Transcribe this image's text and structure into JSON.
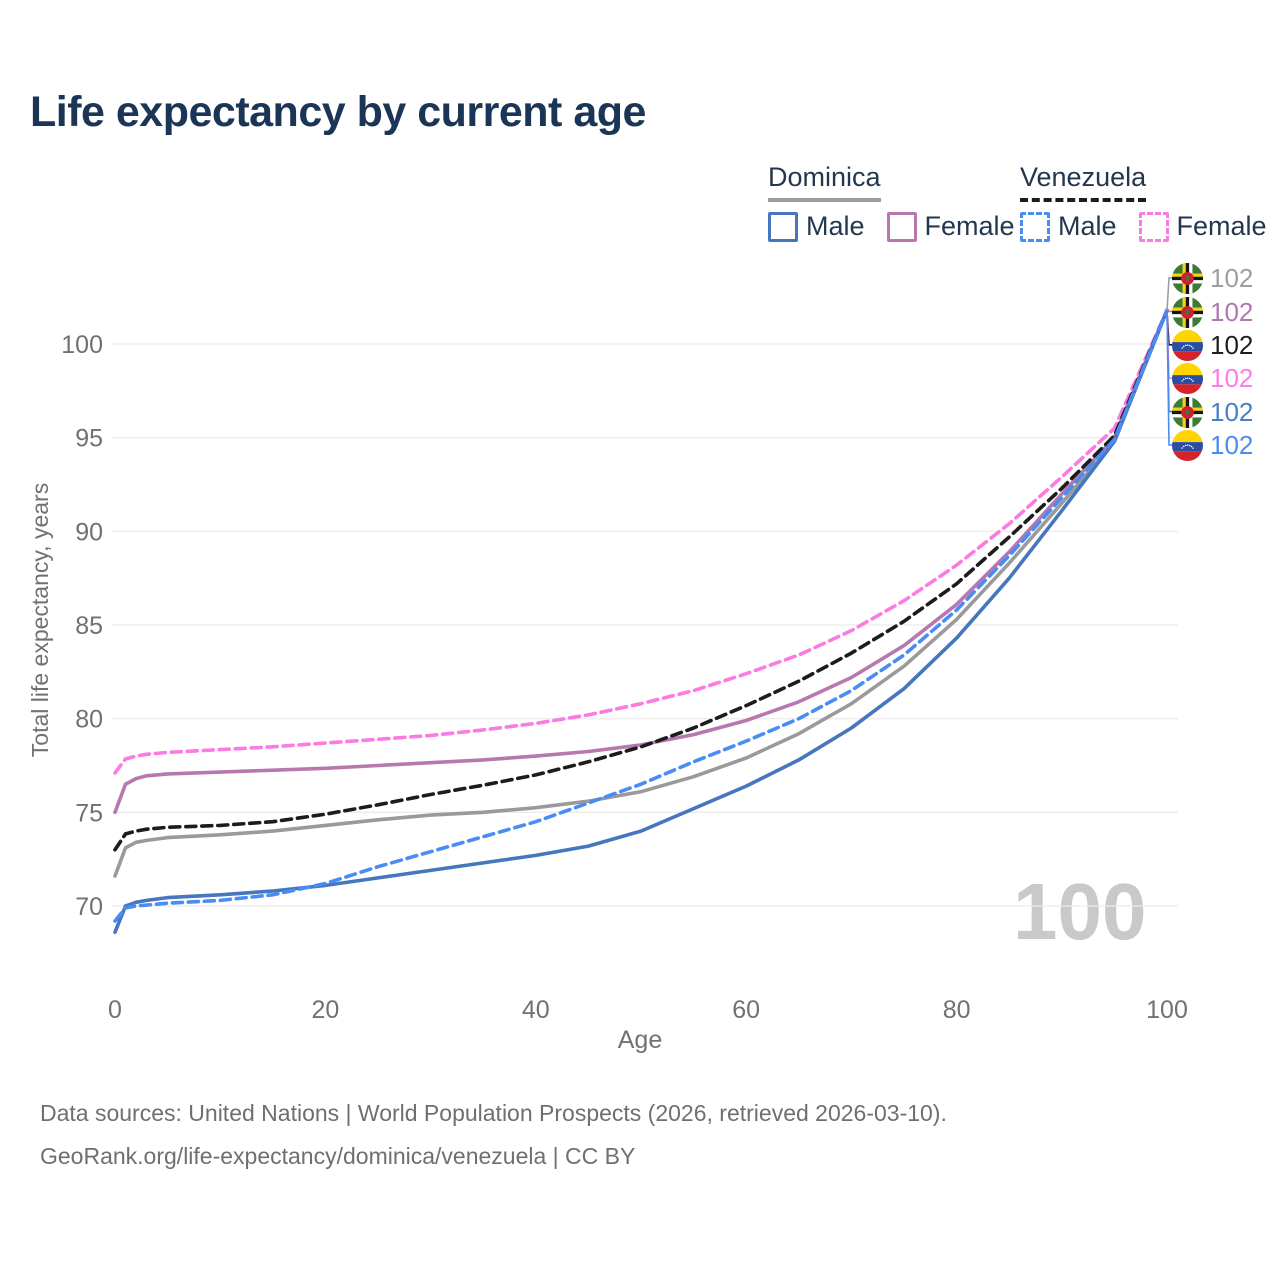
{
  "title": "Life expectancy by current age",
  "legend": {
    "dominica": {
      "label": "Dominica",
      "male": "Male",
      "female": "Female"
    },
    "venezuela": {
      "label": "Venezuela",
      "male": "Male",
      "female": "Female"
    }
  },
  "watermark": "100",
  "footer": {
    "line1": "Data sources: United Nations | World Population Prospects (2026, retrieved 2026-03-10).",
    "line2": "GeoRank.org/life-expectancy/dominica/venezuela | CC BY"
  },
  "chart_data": {
    "type": "line",
    "title": "Life expectancy by current age",
    "xlabel": "Age",
    "ylabel": "Total life expectancy, years",
    "xlim": [
      0,
      100
    ],
    "ylim": [
      68,
      103
    ],
    "xticks": [
      0,
      20,
      40,
      60,
      80,
      100
    ],
    "yticks": [
      70,
      75,
      80,
      85,
      90,
      95,
      100
    ],
    "grid": "horizontal",
    "gridline_color": "#ececec",
    "tick_label_color": "#717171",
    "series": [
      {
        "id": "dominica-total",
        "name": "Dominica",
        "country": "Dominica",
        "sex": "total",
        "color": "#9a9a9a",
        "dashed": false,
        "points": [
          [
            0,
            71.6
          ],
          [
            1,
            73.1
          ],
          [
            2,
            73.4
          ],
          [
            3,
            73.5
          ],
          [
            5,
            73.65
          ],
          [
            10,
            73.8
          ],
          [
            15,
            74.0
          ],
          [
            20,
            74.3
          ],
          [
            25,
            74.6
          ],
          [
            30,
            74.85
          ],
          [
            35,
            75.0
          ],
          [
            40,
            75.25
          ],
          [
            45,
            75.6
          ],
          [
            50,
            76.1
          ],
          [
            55,
            76.9
          ],
          [
            60,
            77.9
          ],
          [
            65,
            79.2
          ],
          [
            70,
            80.8
          ],
          [
            75,
            82.8
          ],
          [
            80,
            85.3
          ],
          [
            85,
            88.3
          ],
          [
            90,
            91.5
          ],
          [
            95,
            94.8
          ],
          [
            100,
            101.8
          ]
        ]
      },
      {
        "id": "dominica-female",
        "name": "Dominica Female",
        "country": "Dominica",
        "sex": "female",
        "color": "#b778b0",
        "dashed": false,
        "points": [
          [
            0,
            75.0
          ],
          [
            1,
            76.5
          ],
          [
            2,
            76.8
          ],
          [
            3,
            76.95
          ],
          [
            5,
            77.05
          ],
          [
            10,
            77.15
          ],
          [
            15,
            77.25
          ],
          [
            20,
            77.35
          ],
          [
            25,
            77.5
          ],
          [
            30,
            77.65
          ],
          [
            35,
            77.8
          ],
          [
            40,
            78.0
          ],
          [
            45,
            78.25
          ],
          [
            50,
            78.6
          ],
          [
            55,
            79.15
          ],
          [
            60,
            79.9
          ],
          [
            65,
            80.9
          ],
          [
            70,
            82.2
          ],
          [
            75,
            83.9
          ],
          [
            80,
            86.1
          ],
          [
            85,
            88.9
          ],
          [
            90,
            92.0
          ],
          [
            95,
            95.0
          ],
          [
            100,
            101.8
          ]
        ]
      },
      {
        "id": "venezuela-female",
        "name": "Venezuela Female",
        "country": "Venezuela",
        "sex": "female",
        "color": "#fb7be0",
        "dashed": true,
        "points": [
          [
            0,
            77.1
          ],
          [
            1,
            77.85
          ],
          [
            2,
            78.0
          ],
          [
            3,
            78.1
          ],
          [
            5,
            78.2
          ],
          [
            10,
            78.35
          ],
          [
            15,
            78.5
          ],
          [
            20,
            78.7
          ],
          [
            25,
            78.9
          ],
          [
            30,
            79.1
          ],
          [
            35,
            79.4
          ],
          [
            40,
            79.75
          ],
          [
            45,
            80.2
          ],
          [
            50,
            80.8
          ],
          [
            55,
            81.5
          ],
          [
            60,
            82.4
          ],
          [
            65,
            83.4
          ],
          [
            70,
            84.7
          ],
          [
            75,
            86.3
          ],
          [
            80,
            88.2
          ],
          [
            85,
            90.4
          ],
          [
            90,
            92.9
          ],
          [
            95,
            95.5
          ],
          [
            100,
            101.8
          ]
        ]
      },
      {
        "id": "venezuela-total",
        "name": "Venezuela",
        "country": "Venezuela",
        "sex": "total",
        "color": "#1c1c1c",
        "dashed": true,
        "points": [
          [
            0,
            73.0
          ],
          [
            1,
            73.85
          ],
          [
            2,
            74.0
          ],
          [
            3,
            74.1
          ],
          [
            5,
            74.2
          ],
          [
            10,
            74.3
          ],
          [
            15,
            74.5
          ],
          [
            20,
            74.9
          ],
          [
            25,
            75.4
          ],
          [
            30,
            75.95
          ],
          [
            35,
            76.45
          ],
          [
            40,
            77.0
          ],
          [
            45,
            77.7
          ],
          [
            50,
            78.5
          ],
          [
            55,
            79.5
          ],
          [
            60,
            80.7
          ],
          [
            65,
            82.0
          ],
          [
            70,
            83.5
          ],
          [
            75,
            85.2
          ],
          [
            80,
            87.2
          ],
          [
            85,
            89.7
          ],
          [
            90,
            92.3
          ],
          [
            95,
            95.1
          ],
          [
            100,
            101.8
          ]
        ]
      },
      {
        "id": "dominica-male",
        "name": "Dominica Male",
        "country": "Dominica",
        "sex": "male",
        "color": "#4676bd",
        "dashed": false,
        "points": [
          [
            0,
            68.6
          ],
          [
            1,
            70.0
          ],
          [
            2,
            70.2
          ],
          [
            3,
            70.3
          ],
          [
            5,
            70.45
          ],
          [
            10,
            70.6
          ],
          [
            15,
            70.8
          ],
          [
            20,
            71.1
          ],
          [
            25,
            71.5
          ],
          [
            30,
            71.9
          ],
          [
            35,
            72.3
          ],
          [
            40,
            72.7
          ],
          [
            45,
            73.2
          ],
          [
            50,
            74.0
          ],
          [
            55,
            75.2
          ],
          [
            60,
            76.4
          ],
          [
            65,
            77.8
          ],
          [
            70,
            79.5
          ],
          [
            75,
            81.6
          ],
          [
            80,
            84.3
          ],
          [
            85,
            87.5
          ],
          [
            90,
            91.1
          ],
          [
            95,
            94.8
          ],
          [
            100,
            101.8
          ]
        ]
      },
      {
        "id": "venezuela-male",
        "name": "Venezuela Male",
        "country": "Venezuela",
        "sex": "male",
        "color": "#4a8cf5",
        "dashed": true,
        "points": [
          [
            0,
            69.2
          ],
          [
            1,
            69.9
          ],
          [
            2,
            70.0
          ],
          [
            3,
            70.05
          ],
          [
            5,
            70.15
          ],
          [
            10,
            70.3
          ],
          [
            15,
            70.6
          ],
          [
            20,
            71.2
          ],
          [
            25,
            72.1
          ],
          [
            30,
            72.9
          ],
          [
            35,
            73.7
          ],
          [
            40,
            74.5
          ],
          [
            45,
            75.5
          ],
          [
            50,
            76.5
          ],
          [
            55,
            77.7
          ],
          [
            60,
            78.8
          ],
          [
            65,
            80.0
          ],
          [
            70,
            81.5
          ],
          [
            75,
            83.4
          ],
          [
            80,
            85.8
          ],
          [
            85,
            88.7
          ],
          [
            90,
            91.8
          ],
          [
            95,
            94.9
          ],
          [
            100,
            101.8
          ]
        ]
      }
    ],
    "end_labels": [
      {
        "flag": "dominica",
        "value": "102",
        "color": "#9e9e9e"
      },
      {
        "flag": "dominica",
        "value": "102",
        "color": "#b278ae"
      },
      {
        "flag": "venezuela",
        "value": "102",
        "color": "#1f1f1f"
      },
      {
        "flag": "venezuela",
        "value": "102",
        "color": "#fd7ce8"
      },
      {
        "flag": "dominica",
        "value": "102",
        "color": "#4a7dc9"
      },
      {
        "flag": "venezuela",
        "value": "102",
        "color": "#4a8cf5"
      }
    ]
  }
}
